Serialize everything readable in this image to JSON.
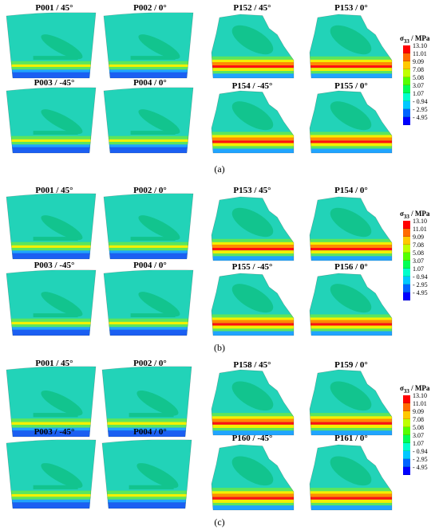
{
  "figure": {
    "panels": [
      {
        "caption": "(a)",
        "plots": [
          "P001 / 45°",
          "P002 / 0°",
          "P003 / -45°",
          "P004 / 0°",
          "P152 / 45°",
          "P153 / 0°",
          "P154 / -45°",
          "P155 / 0°"
        ],
        "legend_title": "σ33 / MPa"
      },
      {
        "caption": "(b)",
        "plots": [
          "P001 / 45°",
          "P002 / 0°",
          "P003 / -45°",
          "P004 / 0°",
          "P153 / 45°",
          "P154 / 0°",
          "P155 / -45°",
          "P156 / 0°"
        ],
        "legend_title": "σ33 / MPa"
      },
      {
        "caption": "(c)",
        "plots": [
          "P001 / 45°",
          "P002 / 0°",
          "P003 / -45°",
          "P004 / 0°",
          "P158 / 45°",
          "P159 / 0°",
          "P160 / -45°",
          "P161 / 0°"
        ],
        "legend_title": "σ33 / MPa"
      }
    ],
    "legend_ticks": [
      "13.10",
      "11.01",
      "9.09",
      "7.08",
      "5.08",
      "3.07",
      "1.07",
      "- 0.94",
      "- 2.95",
      "- 4.95"
    ],
    "legend_colors": [
      "#ff0000",
      "#ff6a00",
      "#ffc800",
      "#bfff00",
      "#55ff00",
      "#00ff55",
      "#00ffcc",
      "#00c8ff",
      "#0064ff",
      "#0000ff"
    ],
    "colors": {
      "field": "#22d3b8",
      "field_dark": "#12c48e",
      "band_green": "#5ce65c",
      "band_yellow": "#f3f000",
      "band_orange": "#ff8c00",
      "band_red": "#ff1010",
      "base_blue": "#1b5ff2",
      "base_light": "#20a4ff"
    }
  }
}
